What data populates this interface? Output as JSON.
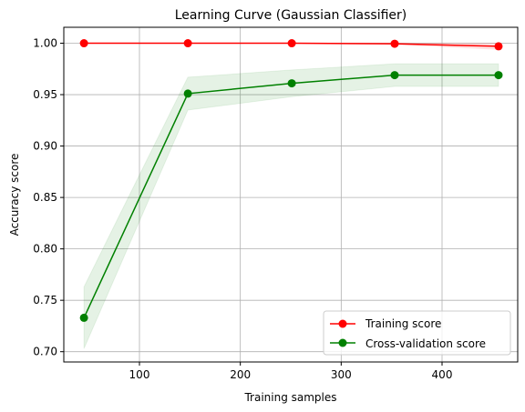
{
  "chart_data": {
    "type": "line",
    "title": "Learning Curve (Gaussian Classifier)",
    "xlabel": "Training samples",
    "ylabel": "Accuracy score",
    "xlim": [
      25,
      475
    ],
    "ylim": [
      0.69,
      1.0155
    ],
    "x": [
      45,
      148,
      251,
      353,
      456
    ],
    "xticks": [
      100,
      200,
      300,
      400
    ],
    "yticks": [
      0.7,
      0.75,
      0.8,
      0.85,
      0.9,
      0.95,
      1.0
    ],
    "xtick_labels": [
      "100",
      "200",
      "300",
      "400"
    ],
    "ytick_labels": [
      "0.70",
      "0.75",
      "0.80",
      "0.85",
      "0.90",
      "0.95",
      "1.00"
    ],
    "grid": true,
    "legend_position": "bottom-right",
    "series": [
      {
        "name": "Training score",
        "color": "#ff0000",
        "values": [
          1.0,
          1.0,
          1.0,
          0.9995,
          0.997
        ],
        "band_low": [
          1.0,
          1.0,
          1.0,
          0.999,
          0.994
        ],
        "band_high": [
          1.0,
          1.0,
          1.0,
          1.0,
          1.0
        ]
      },
      {
        "name": "Cross-validation score",
        "color": "#008000",
        "values": [
          0.733,
          0.951,
          0.961,
          0.969,
          0.969
        ],
        "band_low": [
          0.703,
          0.935,
          0.948,
          0.958,
          0.958
        ],
        "band_high": [
          0.763,
          0.967,
          0.974,
          0.98,
          0.98
        ]
      }
    ]
  }
}
